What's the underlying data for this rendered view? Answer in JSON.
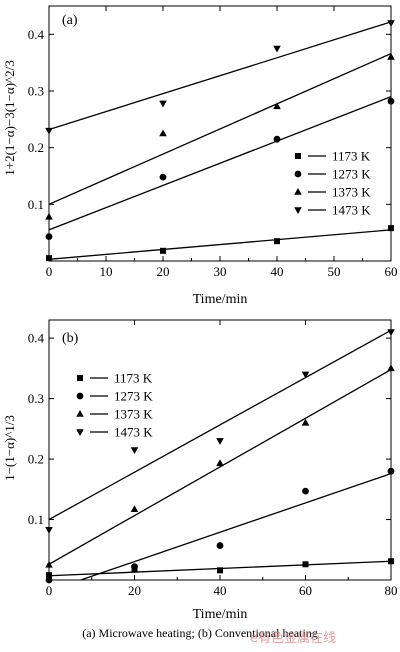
{
  "caption": "(a) Microwave heating; (b) Conventional heating",
  "watermark": "e有色金属在线",
  "chart_data": [
    {
      "type": "scatter",
      "panel_label": "(a)",
      "xlabel": "Time/min",
      "ylabel": "1+2(1−α)−3(1−α)^2/3",
      "xlim": [
        0,
        60
      ],
      "ylim": [
        0,
        0.45
      ],
      "xticks": [
        0,
        10,
        20,
        30,
        40,
        50,
        60
      ],
      "yticks": [
        0.1,
        0.2,
        0.3,
        0.4
      ],
      "legend_position": "right-middle",
      "series": [
        {
          "name": "1173 K",
          "marker": "square",
          "x": [
            0,
            20,
            40,
            60
          ],
          "y": [
            0.005,
            0.018,
            0.035,
            0.058
          ],
          "fit": [
            0.003,
            0.055
          ]
        },
        {
          "name": "1273 K",
          "marker": "circle",
          "x": [
            0,
            20,
            40,
            60
          ],
          "y": [
            0.043,
            0.148,
            0.215,
            0.282
          ],
          "fit": [
            0.055,
            0.29
          ]
        },
        {
          "name": "1373 K",
          "marker": "triangle-up",
          "x": [
            0,
            20,
            40,
            60
          ],
          "y": [
            0.078,
            0.225,
            0.273,
            0.36
          ],
          "fit": [
            0.1,
            0.366
          ]
        },
        {
          "name": "1473 K",
          "marker": "triangle-down",
          "x": [
            0,
            20,
            40,
            60
          ],
          "y": [
            0.23,
            0.278,
            0.375,
            0.42
          ],
          "fit": [
            0.232,
            0.422
          ]
        }
      ]
    },
    {
      "type": "scatter",
      "panel_label": "(b)",
      "xlabel": "Time/min",
      "ylabel": "1−(1−α)^1/3",
      "xlim": [
        0,
        80
      ],
      "ylim": [
        0,
        0.43
      ],
      "xticks": [
        0,
        20,
        40,
        60,
        80
      ],
      "yticks": [
        0.1,
        0.2,
        0.3,
        0.4
      ],
      "legend_position": "top-left",
      "series": [
        {
          "name": "1173 K",
          "marker": "square",
          "x": [
            0,
            20,
            40,
            60,
            80
          ],
          "y": [
            0.008,
            0.018,
            0.016,
            0.026,
            0.031
          ],
          "fit": [
            0.007,
            0.031
          ]
        },
        {
          "name": "1273 K",
          "marker": "circle",
          "x": [
            0,
            20,
            40,
            60,
            80
          ],
          "y": [
            0.0,
            0.022,
            0.057,
            0.147,
            0.18
          ],
          "fit": [
            -0.018,
            0.176
          ]
        },
        {
          "name": "1373 K",
          "marker": "triangle-up",
          "x": [
            0,
            20,
            40,
            60,
            80
          ],
          "y": [
            0.025,
            0.117,
            0.193,
            0.26,
            0.35
          ],
          "fit": [
            0.026,
            0.348
          ]
        },
        {
          "name": "1473 K",
          "marker": "triangle-down",
          "x": [
            0,
            20,
            40,
            60,
            80
          ],
          "y": [
            0.083,
            0.215,
            0.23,
            0.34,
            0.41
          ],
          "fit": [
            0.1,
            0.413
          ]
        }
      ]
    }
  ]
}
